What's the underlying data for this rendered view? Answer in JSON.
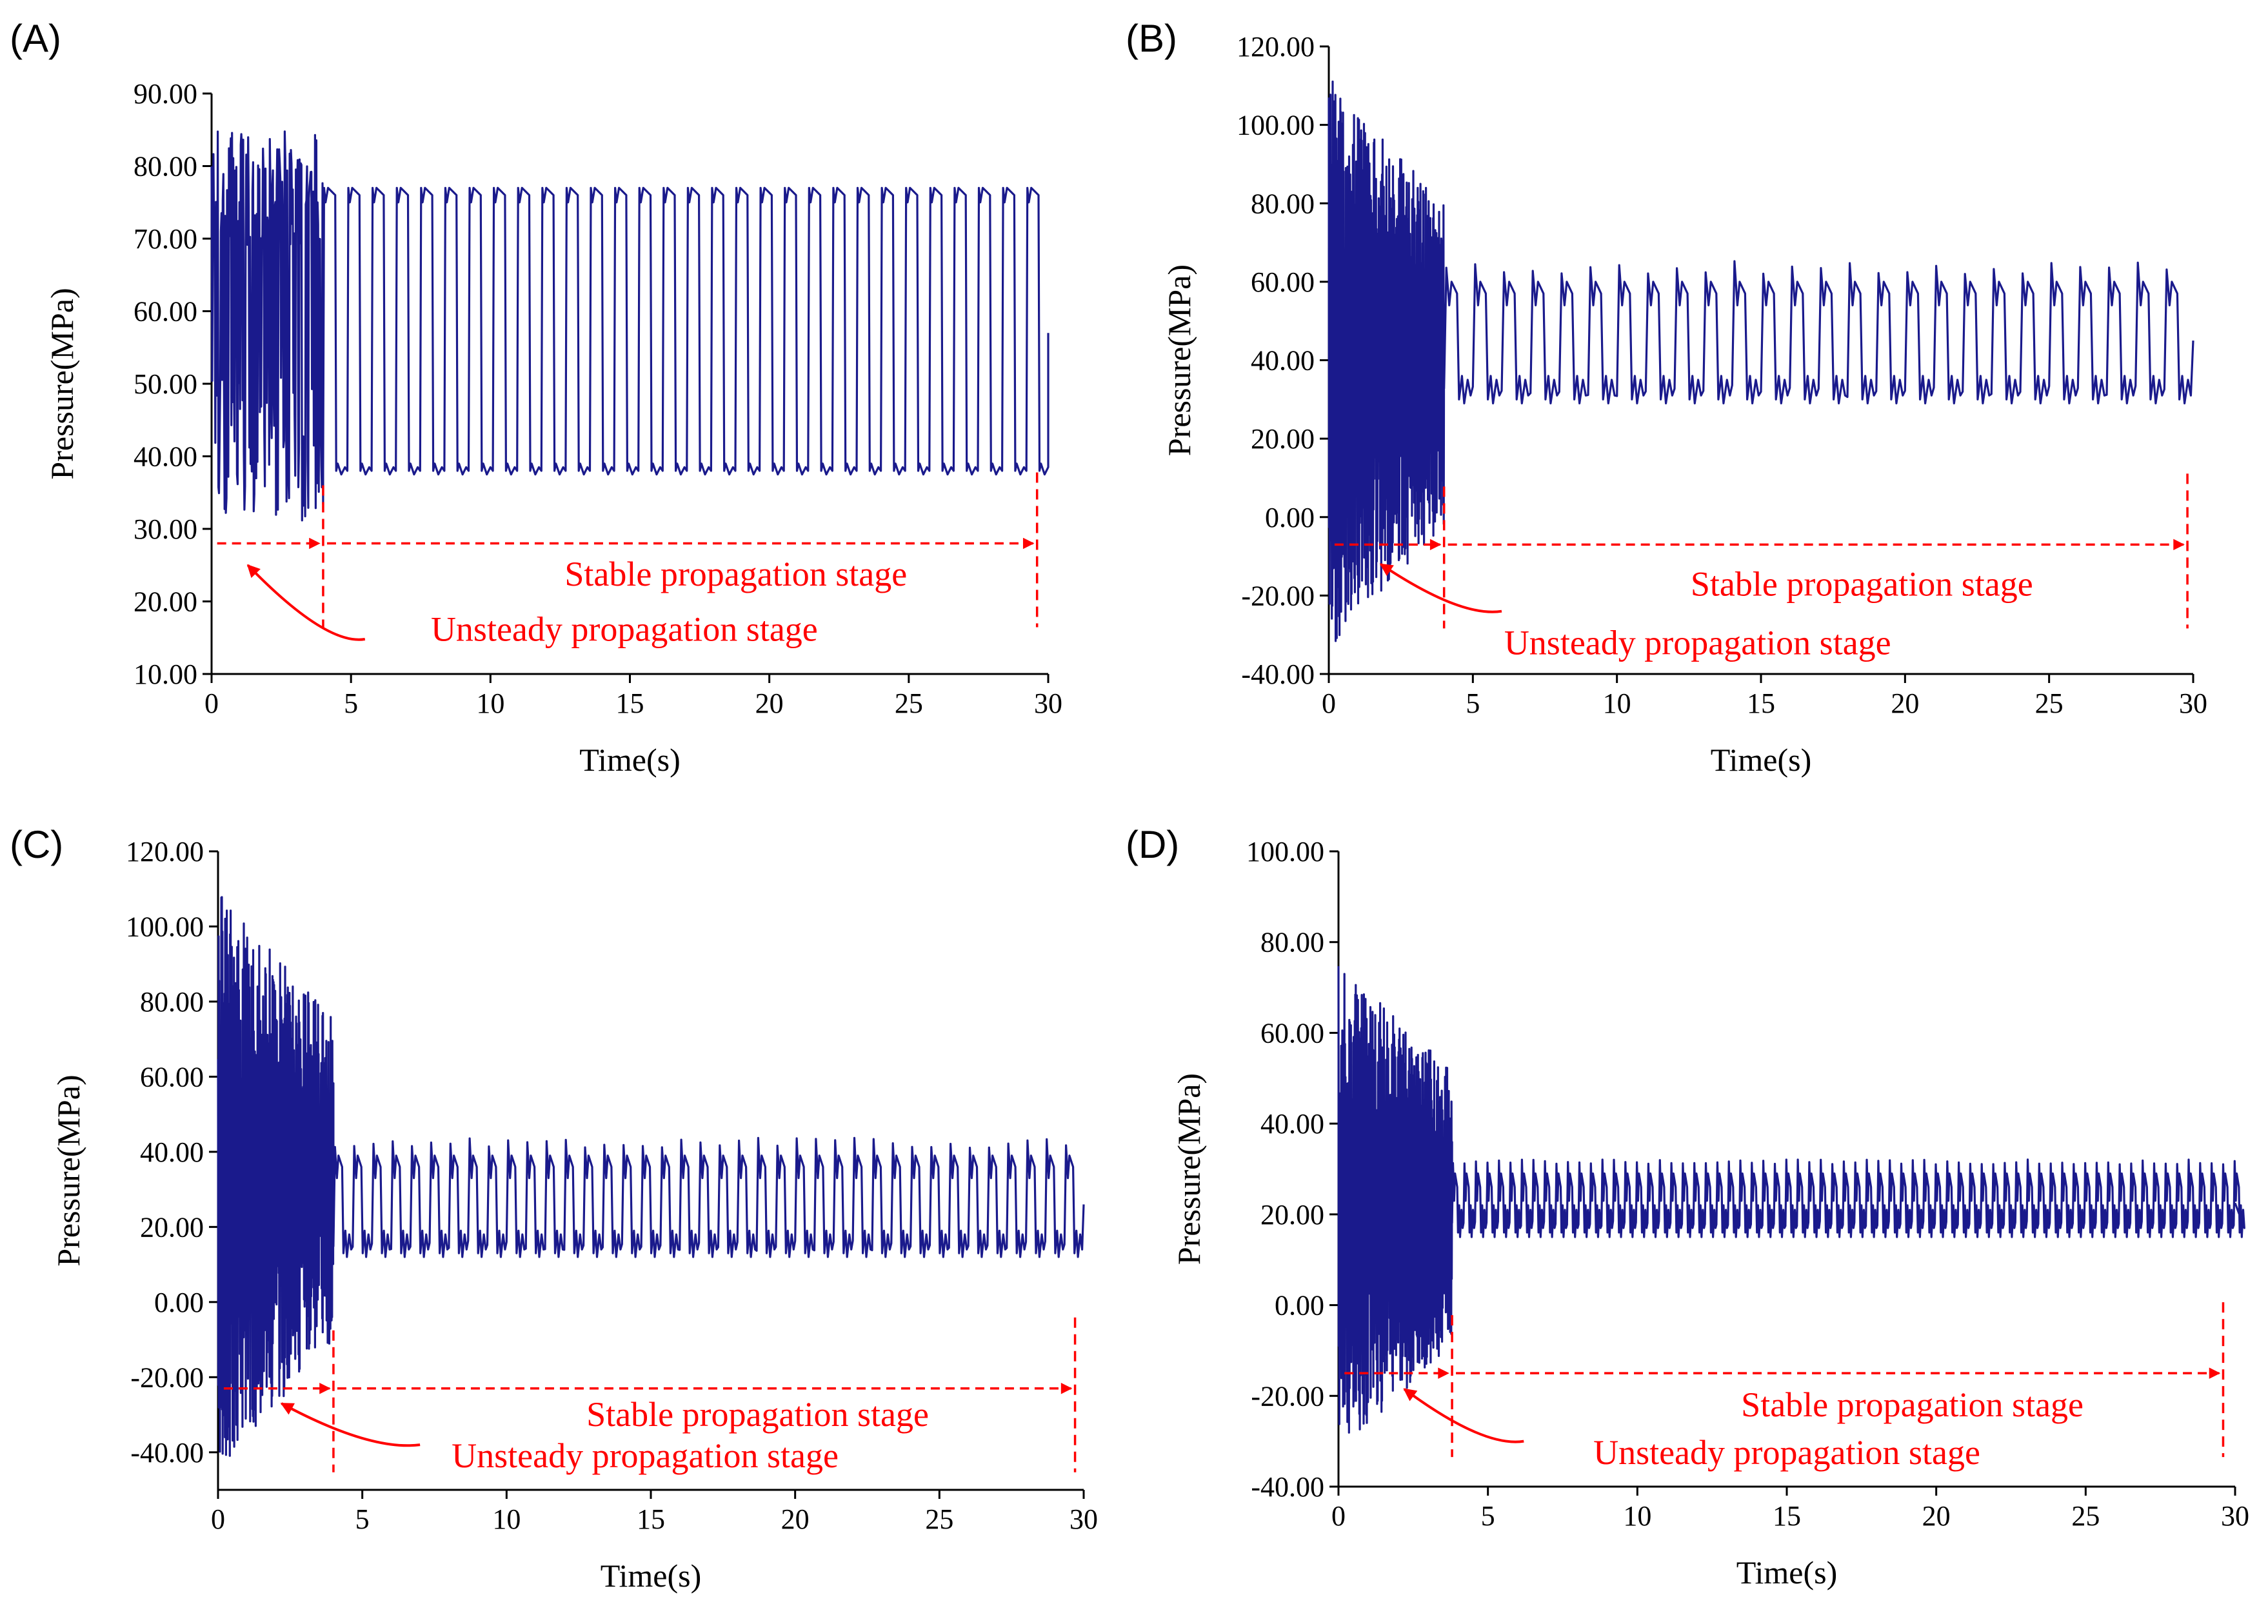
{
  "chart_data": [
    {
      "type": "line",
      "panel_label": "(A)",
      "xlabel": "Time(s)",
      "ylabel": "Pressure(MPa)",
      "xlim": [
        0,
        30
      ],
      "ylim": [
        10,
        90
      ],
      "xticks": [
        "0",
        "5",
        "10",
        "15",
        "20",
        "25",
        "30"
      ],
      "yticks": [
        "10.00",
        "20.00",
        "30.00",
        "40.00",
        "50.00",
        "60.00",
        "70.00",
        "80.00",
        "90.00"
      ],
      "series": [
        {
          "name": "Pressure",
          "color": "#1a1a8c",
          "unsteady_range": [
            28,
            85
          ],
          "stable_high": 76,
          "stable_low": 38,
          "cycles_per_s": 1.15,
          "transition_s": 4,
          "end_s": 30
        }
      ],
      "annotations": {
        "stable_label": "Stable propagation stage",
        "unsteady_label": "Unsteady propagation stage",
        "arrow_y": 28,
        "divider_x": 4,
        "end_x": 29.6,
        "stable_label_x": 18.8,
        "stable_label_y": 22.2,
        "unsteady_label_x": 14.8,
        "unsteady_label_y": 14.6,
        "curve_arrow_from": [
          5.5,
          14.8
        ],
        "curve_arrow_to": [
          1.3,
          25
        ]
      }
    },
    {
      "type": "line",
      "panel_label": "(B)",
      "xlabel": "Time(s)",
      "ylabel": "Pressure(MPa)",
      "xlim": [
        0,
        30
      ],
      "ylim": [
        -40,
        120
      ],
      "xticks": [
        "0",
        "5",
        "10",
        "15",
        "20",
        "25",
        "30"
      ],
      "yticks": [
        "-40.00",
        "-20.00",
        "0.00",
        "20.00",
        "40.00",
        "60.00",
        "80.00",
        "100.00",
        "120.00"
      ],
      "series": [
        {
          "name": "Pressure",
          "color": "#1a1a8c",
          "unsteady_range": [
            -35,
            113
          ],
          "stable_high": 58,
          "stable_low": 32,
          "cycles_per_s": 1.0,
          "transition_s": 4,
          "end_s": 30
        }
      ],
      "annotations": {
        "stable_label": "Stable propagation stage",
        "unsteady_label": "Unsteady propagation stage",
        "arrow_y": -7,
        "divider_x": 4,
        "end_x": 29.8,
        "stable_label_x": 18.5,
        "stable_label_y": -20,
        "unsteady_label_x": 12.8,
        "unsteady_label_y": -35,
        "curve_arrow_from": [
          6,
          -24
        ],
        "curve_arrow_to": [
          1.8,
          -12
        ]
      }
    },
    {
      "type": "line",
      "panel_label": "(C)",
      "xlabel": "Time(s)",
      "ylabel": "Pressure(MPa)",
      "xlim": [
        0,
        30
      ],
      "ylim": [
        -50,
        120
      ],
      "xticks": [
        "0",
        "5",
        "10",
        "15",
        "20",
        "25",
        "30"
      ],
      "yticks": [
        "-40.00",
        "-20.00",
        "0.00",
        "20.00",
        "40.00",
        "60.00",
        "80.00",
        "100.00",
        "120.00"
      ],
      "series": [
        {
          "name": "Pressure",
          "color": "#1a1a8c",
          "unsteady_range": [
            -45,
            110
          ],
          "stable_high": 37,
          "stable_low": 15,
          "cycles_per_s": 1.5,
          "transition_s": 4,
          "end_s": 30
        }
      ],
      "annotations": {
        "stable_label": "Stable propagation stage",
        "unsteady_label": "Unsteady propagation stage",
        "arrow_y": -23,
        "divider_x": 4,
        "end_x": 29.7,
        "stable_label_x": 18.7,
        "stable_label_y": -33,
        "unsteady_label_x": 14.8,
        "unsteady_label_y": -44,
        "curve_arrow_from": [
          7,
          -38
        ],
        "curve_arrow_to": [
          2.2,
          -27
        ]
      }
    },
    {
      "type": "line",
      "panel_label": "(D)",
      "xlabel": "Time(s)",
      "ylabel": "Pressure(MPa)",
      "xlim": [
        0,
        30
      ],
      "ylim": [
        -40,
        100
      ],
      "xticks": [
        "0",
        "5",
        "10",
        "15",
        "20",
        "25",
        "30"
      ],
      "yticks": [
        "-40.00",
        "-20.00",
        "0.00",
        "20.00",
        "40.00",
        "60.00",
        "80.00",
        "100.00"
      ],
      "series": [
        {
          "name": "Pressure",
          "color": "#1a1a8c",
          "unsteady_range": [
            -33,
            76
          ],
          "stable_high": 27,
          "stable_low": 18,
          "cycles_per_s": 2.6,
          "transition_s": 3.8,
          "end_s": 30
        }
      ],
      "annotations": {
        "stable_label": "Stable propagation stage",
        "unsteady_label": "Unsteady propagation stage",
        "arrow_y": -15,
        "divider_x": 3.8,
        "end_x": 29.6,
        "stable_label_x": 19.2,
        "stable_label_y": -24.5,
        "unsteady_label_x": 15,
        "unsteady_label_y": -35,
        "curve_arrow_from": [
          6.2,
          -30
        ],
        "curve_arrow_to": [
          2.2,
          -18.5
        ]
      }
    }
  ]
}
